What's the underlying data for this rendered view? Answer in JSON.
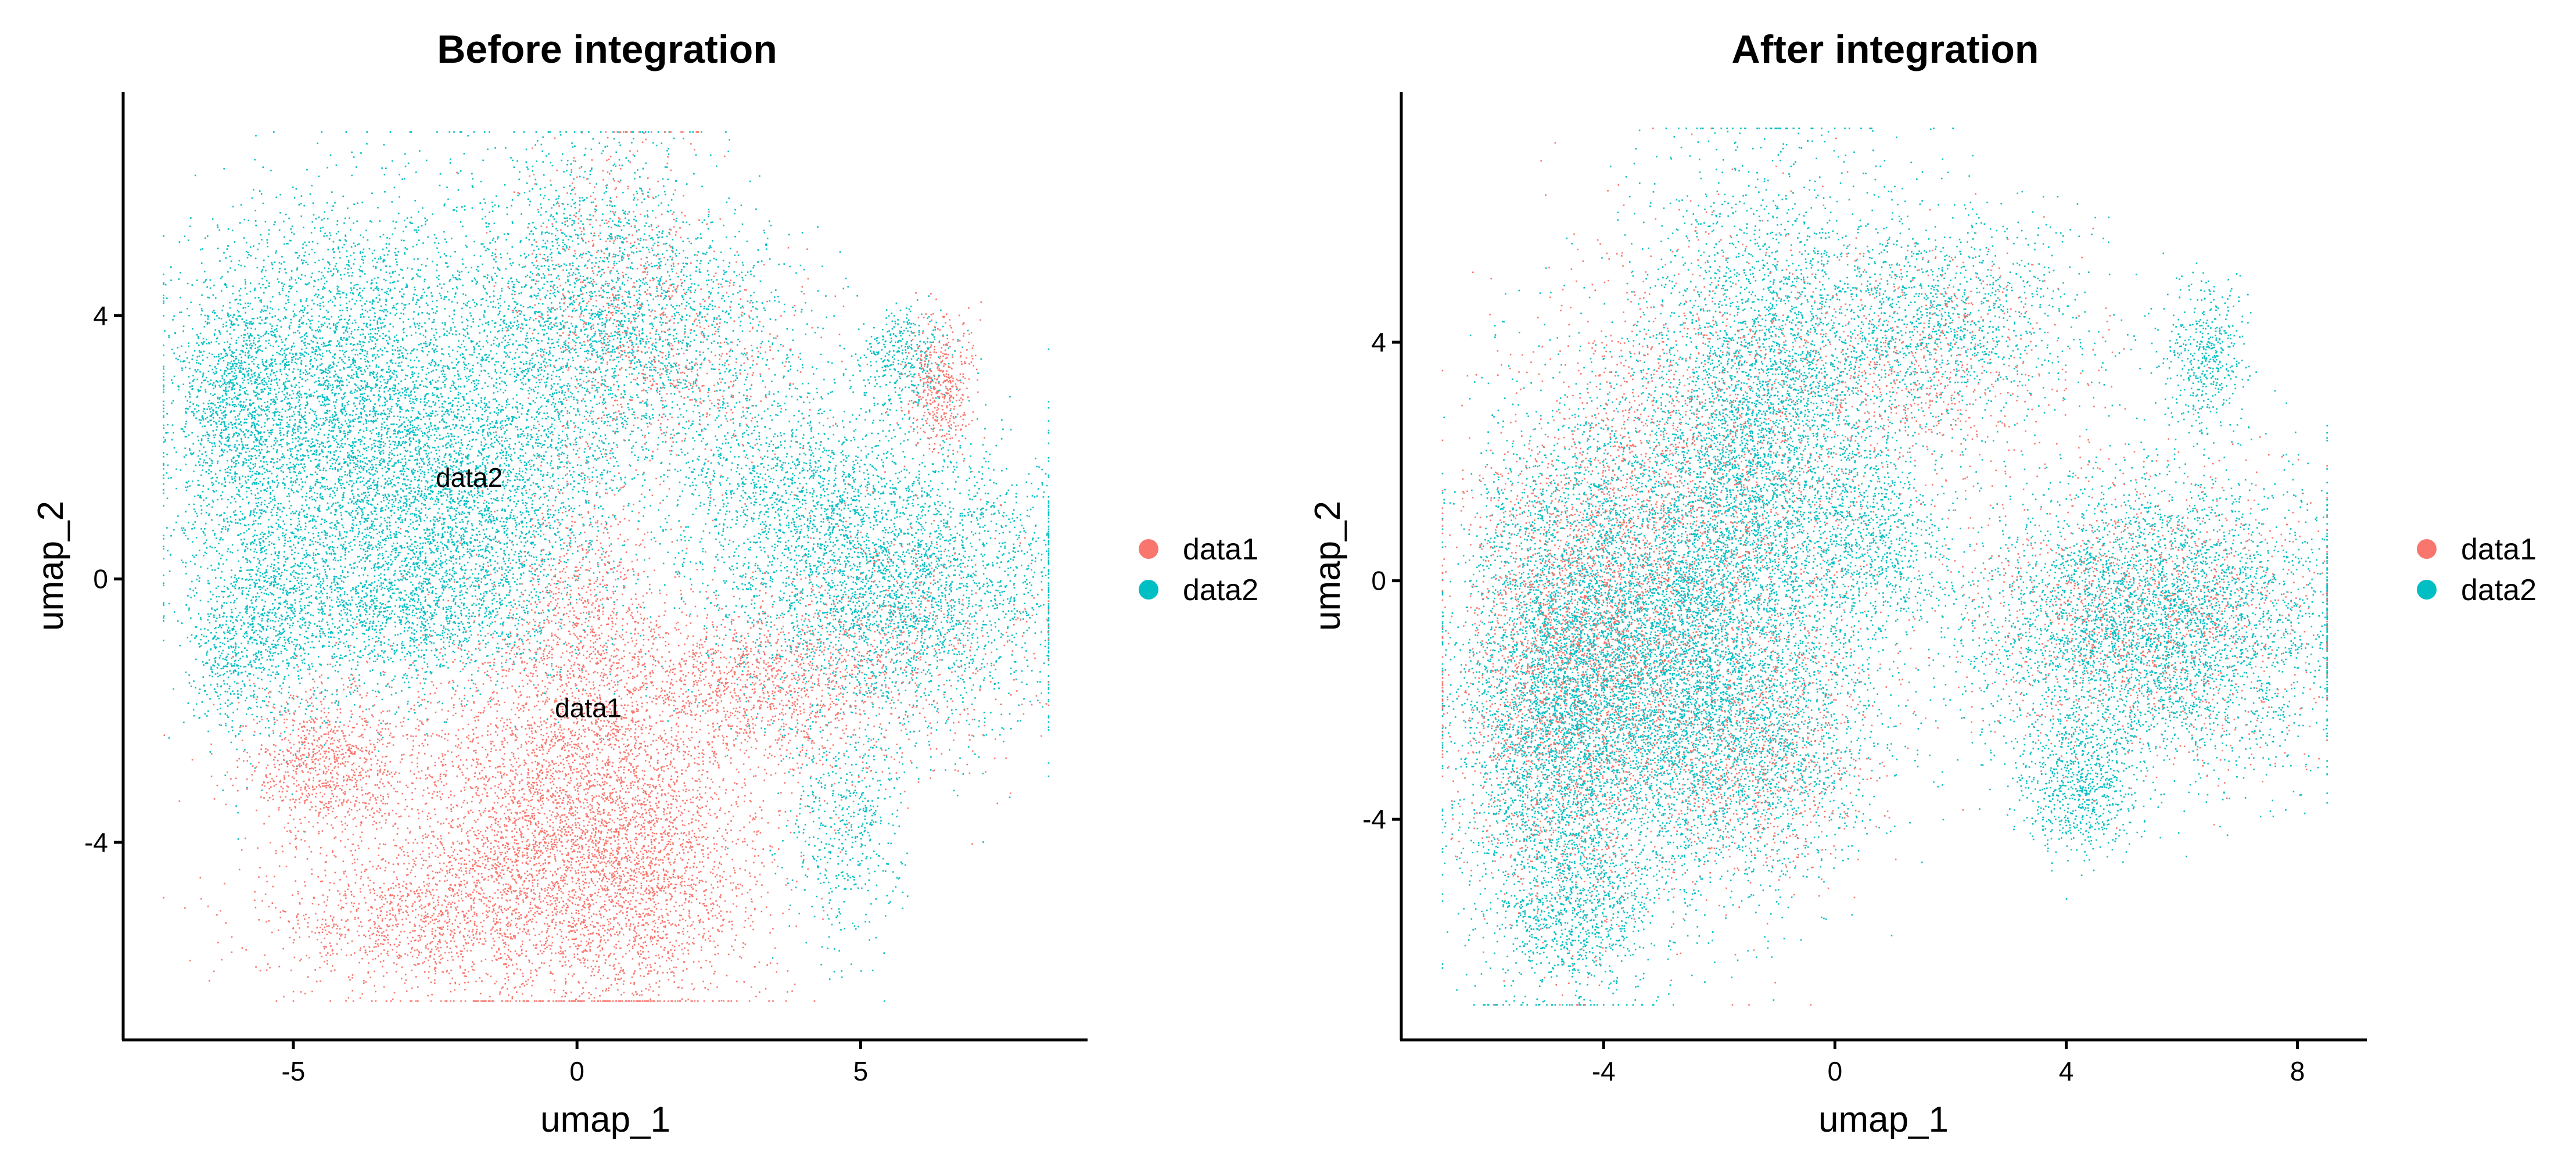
{
  "colors": {
    "data1": "#F8766D",
    "data2": "#00BFC4"
  },
  "chart_data": [
    {
      "type": "scatter",
      "title": "Before integration",
      "xlabel": "umap_1",
      "ylabel": "umap_2",
      "xlim": [
        -8.0,
        9.0
      ],
      "ylim": [
        -7.0,
        7.4
      ],
      "xticks": [
        -5,
        0,
        5
      ],
      "yticks": [
        -4,
        0,
        4
      ],
      "grid": false,
      "legend": "right",
      "legend_entries": [
        "data1",
        "data2"
      ],
      "labels": [
        {
          "text": "data2",
          "x": -1.9,
          "y": 1.4
        },
        {
          "text": "data1",
          "x": 0.2,
          "y": -2.1
        }
      ],
      "series": [
        {
          "name": "data2",
          "clusters": [
            {
              "cx": -4.2,
              "cy": 2.9,
              "sx": 1.3,
              "sy": 1.4,
              "w": 5
            },
            {
              "cx": -6.0,
              "cy": 2.6,
              "sx": 0.55,
              "sy": 1.0,
              "w": 1.5
            },
            {
              "cx": -5.5,
              "cy": -0.4,
              "sx": 0.7,
              "sy": 1.0,
              "w": 1.5
            },
            {
              "cx": -2.2,
              "cy": 1.0,
              "sx": 1.4,
              "sy": 1.1,
              "w": 4
            },
            {
              "cx": -3.0,
              "cy": -0.5,
              "sx": 1.2,
              "sy": 0.6,
              "w": 1.5
            },
            {
              "cx": -0.8,
              "cy": 3.4,
              "sx": 1.1,
              "sy": 1.4,
              "w": 2
            },
            {
              "cx": 0.5,
              "cy": 4.2,
              "sx": 1.0,
              "sy": 1.4,
              "w": 1.5
            },
            {
              "cx": 1.8,
              "cy": 3.8,
              "sx": 1.3,
              "sy": 0.9,
              "w": 1.2
            },
            {
              "cx": 5.5,
              "cy": 0.0,
              "sx": 1.6,
              "sy": 1.1,
              "w": 5
            },
            {
              "cx": 3.5,
              "cy": 1.6,
              "sx": 1.1,
              "sy": 0.8,
              "w": 1.2
            },
            {
              "cx": 5.8,
              "cy": 3.3,
              "sx": 0.4,
              "sy": 0.4,
              "w": 0.5
            },
            {
              "cx": 4.7,
              "cy": -3.8,
              "sx": 0.5,
              "sy": 0.9,
              "w": 0.7
            },
            {
              "cx": -6.2,
              "cy": -1.3,
              "sx": 0.3,
              "sy": 0.5,
              "w": 0.3
            }
          ]
        },
        {
          "name": "data1",
          "clusters": [
            {
              "cx": -0.2,
              "cy": -3.6,
              "sx": 1.6,
              "sy": 1.5,
              "w": 6
            },
            {
              "cx": -4.4,
              "cy": -2.8,
              "sx": 0.7,
              "sy": 0.6,
              "w": 1.3
            },
            {
              "cx": -2.8,
              "cy": -5.2,
              "sx": 1.4,
              "sy": 0.55,
              "w": 1.5
            },
            {
              "cx": 1.2,
              "cy": -4.6,
              "sx": 1.1,
              "sy": 0.9,
              "w": 1.5
            },
            {
              "cx": 0.1,
              "cy": -0.9,
              "sx": 0.7,
              "sy": 1.3,
              "w": 1.2
            },
            {
              "cx": 3.2,
              "cy": -1.6,
              "sx": 1.2,
              "sy": 0.6,
              "w": 1.5
            },
            {
              "cx": 6.4,
              "cy": 2.9,
              "sx": 0.3,
              "sy": 0.5,
              "w": 0.6
            },
            {
              "cx": 0.6,
              "cy": 4.4,
              "sx": 0.8,
              "sy": 1.3,
              "w": 0.8
            },
            {
              "cx": 2.2,
              "cy": 3.2,
              "sx": 1.0,
              "sy": 0.8,
              "w": 0.5
            },
            {
              "cx": 5.5,
              "cy": -1.0,
              "sx": 1.4,
              "sy": 1.0,
              "w": 0.8
            }
          ]
        }
      ]
    },
    {
      "type": "scatter",
      "title": "After integration",
      "xlabel": "umap_1",
      "ylabel": "umap_2",
      "xlim": [
        -7.5,
        9.2
      ],
      "ylim": [
        -7.7,
        8.2
      ],
      "xticks": [
        -4,
        0,
        4,
        8
      ],
      "yticks": [
        -4,
        0,
        4
      ],
      "grid": false,
      "legend": "right",
      "legend_entries": [
        "data1",
        "data2"
      ],
      "labels": [],
      "series": [
        {
          "name": "data2",
          "clusters": [
            {
              "cx": -4.8,
              "cy": -2.0,
              "sx": 0.9,
              "sy": 2.2,
              "w": 5
            },
            {
              "cx": -3.0,
              "cy": -1.0,
              "sx": 1.2,
              "sy": 2.0,
              "w": 5
            },
            {
              "cx": -1.2,
              "cy": 2.5,
              "sx": 1.1,
              "sy": 2.2,
              "w": 5
            },
            {
              "cx": -1.4,
              "cy": -2.6,
              "sx": 1.1,
              "sy": 1.2,
              "w": 2
            },
            {
              "cx": 1.8,
              "cy": 4.4,
              "sx": 1.3,
              "sy": 0.9,
              "w": 1.5
            },
            {
              "cx": 0.6,
              "cy": 0.6,
              "sx": 0.6,
              "sy": 0.9,
              "w": 0.8
            },
            {
              "cx": 5.5,
              "cy": -0.7,
              "sx": 1.6,
              "sy": 1.2,
              "w": 5
            },
            {
              "cx": 4.2,
              "cy": -3.4,
              "sx": 0.5,
              "sy": 0.6,
              "w": 0.8
            },
            {
              "cx": 6.4,
              "cy": 3.8,
              "sx": 0.35,
              "sy": 0.6,
              "w": 0.5
            },
            {
              "cx": -4.5,
              "cy": -5.6,
              "sx": 0.6,
              "sy": 0.6,
              "w": 0.6
            }
          ]
        },
        {
          "name": "data1",
          "clusters": [
            {
              "cx": -4.6,
              "cy": -1.5,
              "sx": 1.0,
              "sy": 2.0,
              "w": 2.5
            },
            {
              "cx": -2.5,
              "cy": 0.8,
              "sx": 1.5,
              "sy": 2.4,
              "w": 2.5
            },
            {
              "cx": 5.3,
              "cy": -0.6,
              "sx": 1.6,
              "sy": 1.2,
              "w": 1.5
            },
            {
              "cx": 1.4,
              "cy": 3.6,
              "sx": 1.4,
              "sy": 1.0,
              "w": 0.8
            },
            {
              "cx": -1.2,
              "cy": -3.0,
              "sx": 1.0,
              "sy": 1.0,
              "w": 0.7
            }
          ]
        }
      ]
    }
  ]
}
